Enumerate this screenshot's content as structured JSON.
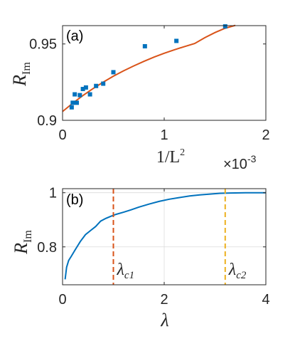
{
  "chart_data": [
    {
      "panel_label": "(a)",
      "type": "scatter",
      "xlabel": "1/L",
      "xlabel_sup": "2",
      "ylabel": "R",
      "ylabel_sub": "Im",
      "x_multiplier": "×10",
      "x_multiplier_exp": "-3",
      "xlim": [
        0,
        2
      ],
      "ylim": [
        0.9,
        0.962
      ],
      "xticks": [
        0,
        1,
        2
      ],
      "xtick_labels": [
        "0",
        "1",
        "2"
      ],
      "yticks": [
        0.9,
        0.95
      ],
      "ytick_labels": [
        "0.9",
        "0.95"
      ],
      "grid": false,
      "marker_color": "#0072BD",
      "fit_color": "#D95319",
      "points": [
        {
          "x": 0.09,
          "y": 0.9085
        },
        {
          "x": 0.1,
          "y": 0.9115
        },
        {
          "x": 0.12,
          "y": 0.917
        },
        {
          "x": 0.14,
          "y": 0.9115
        },
        {
          "x": 0.17,
          "y": 0.9165
        },
        {
          "x": 0.2,
          "y": 0.9205
        },
        {
          "x": 0.23,
          "y": 0.9215
        },
        {
          "x": 0.27,
          "y": 0.917
        },
        {
          "x": 0.33,
          "y": 0.9225
        },
        {
          "x": 0.4,
          "y": 0.924
        },
        {
          "x": 0.5,
          "y": 0.9315
        },
        {
          "x": 0.81,
          "y": 0.9485
        },
        {
          "x": 1.12,
          "y": 0.952
        },
        {
          "x": 1.6,
          "y": 0.9615
        }
      ],
      "fit": {
        "x": [
          0,
          0.1,
          0.2,
          0.3,
          0.4,
          0.5,
          0.6,
          0.7,
          0.8,
          0.9,
          1.0,
          1.1,
          1.2,
          1.3,
          1.4,
          1.5,
          1.6,
          1.7
        ],
        "y": [
          0.9058,
          0.9112,
          0.9162,
          0.9208,
          0.925,
          0.9289,
          0.9324,
          0.9356,
          0.9386,
          0.9414,
          0.9439,
          0.9462,
          0.9483,
          0.9503,
          0.9541,
          0.9575,
          0.9603,
          0.9622
        ]
      }
    },
    {
      "panel_label": "(b)",
      "type": "line",
      "xlabel": "λ",
      "ylabel": "R",
      "ylabel_sub": "Im",
      "xlim": [
        0,
        4
      ],
      "ylim": [
        0.66,
        1.015
      ],
      "xticks": [
        0,
        2,
        4
      ],
      "xtick_labels": [
        "0",
        "2",
        "4"
      ],
      "yticks": [
        0.8,
        1
      ],
      "ytick_labels": [
        "0.8",
        "1"
      ],
      "grid": true,
      "line_color": "#0072BD",
      "series": [
        {
          "x": [
            0.05,
            0.08,
            0.12,
            0.17,
            0.25,
            0.35,
            0.45,
            0.55,
            0.65,
            0.75,
            0.85,
            0.95,
            1.05,
            1.2,
            1.35,
            1.5,
            1.7,
            1.9,
            2.1,
            2.3,
            2.5,
            2.7,
            2.9,
            3.1,
            3.3,
            3.6,
            4.0
          ],
          "y": [
            0.68,
            0.725,
            0.75,
            0.765,
            0.79,
            0.82,
            0.845,
            0.86,
            0.875,
            0.895,
            0.905,
            0.913,
            0.92,
            0.928,
            0.937,
            0.947,
            0.958,
            0.968,
            0.976,
            0.982,
            0.988,
            0.992,
            0.995,
            0.998,
            0.999,
            1.0,
            1.0
          ]
        }
      ],
      "vlines": [
        {
          "x": 1.0,
          "label": "λ",
          "label_sub": "c1",
          "color": "#D95319"
        },
        {
          "x": 3.2,
          "label": "λ",
          "label_sub": "c2",
          "color": "#EDB120"
        }
      ]
    }
  ]
}
